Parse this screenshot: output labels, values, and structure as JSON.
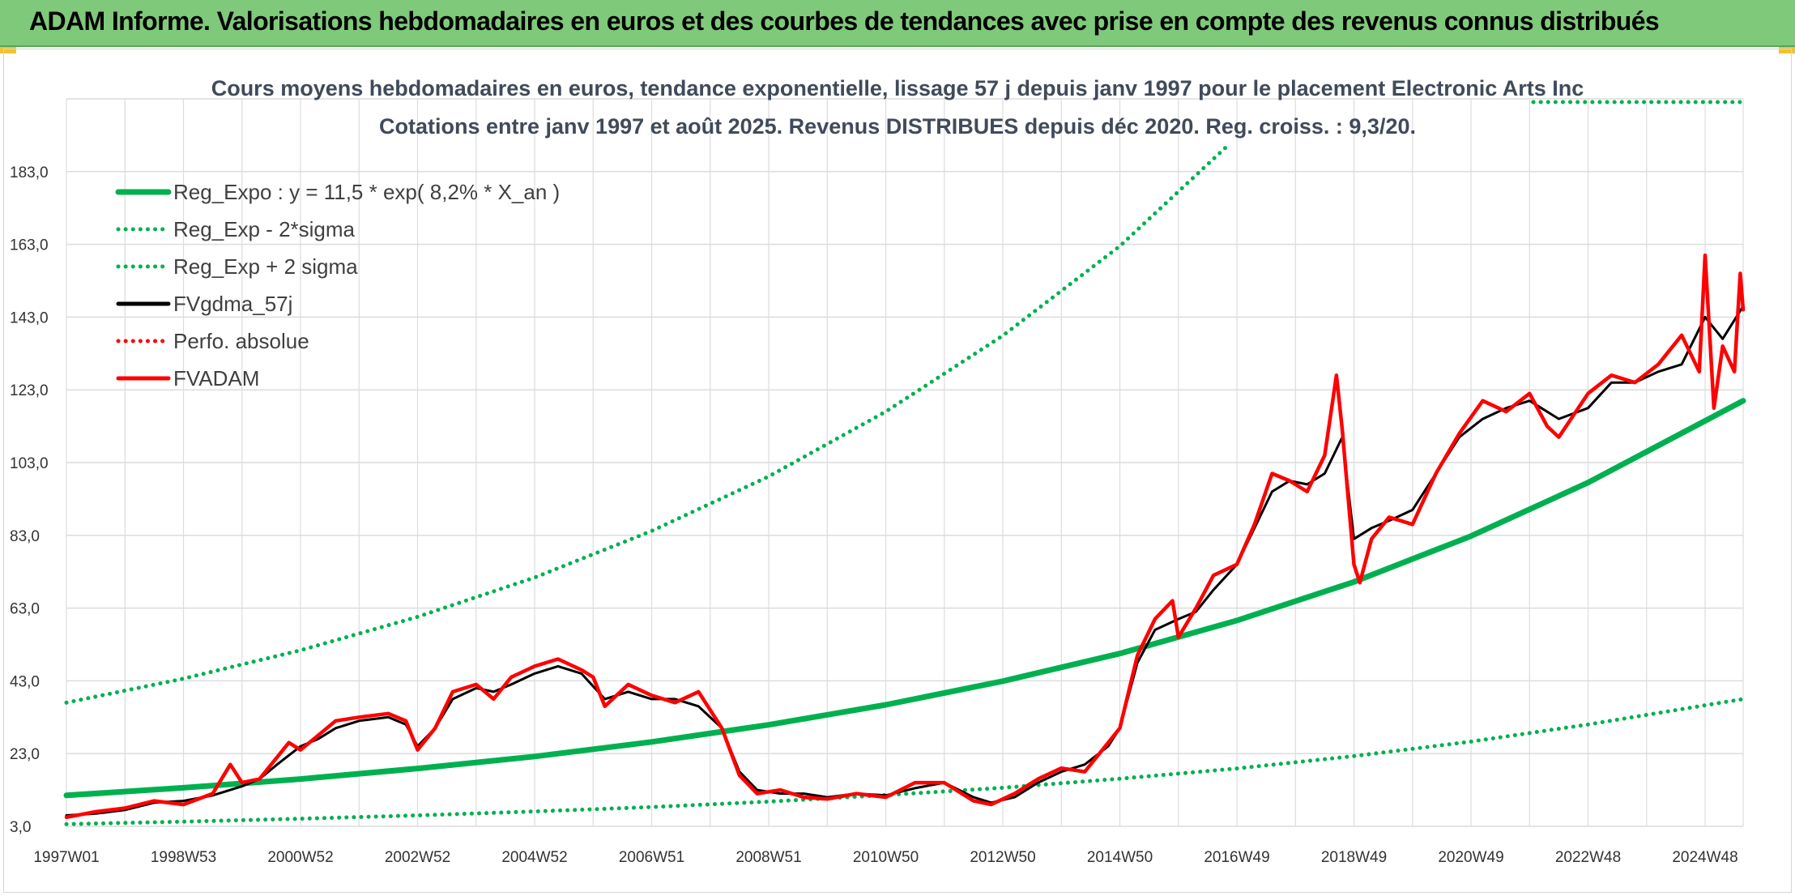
{
  "banner": {
    "title": "ADAM Informe. Valorisations hebdomadaires en euros et des courbes de tendances avec prise en compte des revenus connus distribués"
  },
  "colors": {
    "banner_bg": "#7fc97a",
    "green": "#00b050",
    "red": "#ff0000",
    "black": "#000000",
    "grid": "#dcdcdc"
  },
  "chart_data": {
    "type": "line",
    "title_line1": "Cours moyens hebdomadaires en euros, tendance exponentielle, lissage 57 j depuis janv 1997 pour le placement Electronic Arts Inc",
    "title_line2": "Cotations entre janv 1997 et août 2025. Revenus DISTRIBUES depuis déc 2020. Reg. croiss. : 9,3/20.",
    "xlabel": "",
    "ylabel": "",
    "x_range": [
      1997.0,
      2025.65
    ],
    "ylim": [
      3.0,
      203.0
    ],
    "y_ticks": [
      "3,0",
      "23,0",
      "43,0",
      "63,0",
      "83,0",
      "103,0",
      "123,0",
      "143,0",
      "163,0",
      "183,0"
    ],
    "x_ticks": [
      {
        "label": "1997W01",
        "x": 1997.0
      },
      {
        "label": "1998W53",
        "x": 1999.0
      },
      {
        "label": "2000W52",
        "x": 2001.0
      },
      {
        "label": "2002W52",
        "x": 2003.0
      },
      {
        "label": "2004W52",
        "x": 2005.0
      },
      {
        "label": "2006W51",
        "x": 2007.0
      },
      {
        "label": "2008W51",
        "x": 2009.0
      },
      {
        "label": "2010W50",
        "x": 2011.0
      },
      {
        "label": "2012W50",
        "x": 2013.0
      },
      {
        "label": "2014W50",
        "x": 2015.0
      },
      {
        "label": "2016W49",
        "x": 2017.0
      },
      {
        "label": "2018W49",
        "x": 2019.0
      },
      {
        "label": "2020W49",
        "x": 2021.0
      },
      {
        "label": "2022W48",
        "x": 2023.0
      },
      {
        "label": "2024W48",
        "x": 2025.0
      }
    ],
    "grid": true,
    "legend_position": "top-left",
    "series": [
      {
        "name": "Reg_Expo : y = 11,5 * exp( 8,2% *  X_an )",
        "style": "solid",
        "color": "#00b050",
        "x": [
          1997,
          1999,
          2001,
          2003,
          2005,
          2007,
          2009,
          2011,
          2013,
          2015,
          2017,
          2019,
          2021,
          2023,
          2025.65
        ],
        "y": [
          11.5,
          13.6,
          16.0,
          18.9,
          22.2,
          26.2,
          30.9,
          36.4,
          42.9,
          50.5,
          59.6,
          70.2,
          82.8,
          97.5,
          120.0
        ]
      },
      {
        "name": "Reg_Exp - 2*sigma",
        "style": "dotted",
        "color": "#00b050",
        "x": [
          1997,
          1999,
          2001,
          2003,
          2005,
          2007,
          2009,
          2011,
          2013,
          2015,
          2017,
          2019,
          2021,
          2023,
          2025.65
        ],
        "y": [
          3.6,
          4.3,
          5.1,
          6.0,
          7.1,
          8.3,
          9.8,
          11.6,
          13.6,
          16.1,
          18.9,
          22.3,
          26.3,
          31.0,
          38.0
        ]
      },
      {
        "name": "Reg_Exp + 2 sigma",
        "style": "dotted",
        "color": "#00b050",
        "x": [
          1997,
          1999,
          2001,
          2003,
          2005,
          2007,
          2009,
          2011,
          2013,
          2015,
          2016.8
        ],
        "y": [
          37.0,
          43.6,
          51.4,
          60.6,
          71.4,
          84.2,
          99.2,
          117.0,
          137.9,
          162.5,
          189.5
        ]
      },
      {
        "name": "FVgdma_57j",
        "style": "solid",
        "color": "#000000",
        "x": [
          1997.0,
          1997.5,
          1998.0,
          1998.5,
          1999.0,
          1999.5,
          2000.0,
          2000.3,
          2000.6,
          2001.0,
          2001.3,
          2001.6,
          2002.0,
          2002.5,
          2002.8,
          2003.0,
          2003.3,
          2003.6,
          2004.0,
          2004.3,
          2004.6,
          2005.0,
          2005.4,
          2005.8,
          2006.2,
          2006.6,
          2007.0,
          2007.4,
          2007.8,
          2008.2,
          2008.5,
          2008.8,
          2009.2,
          2009.6,
          2010.0,
          2010.5,
          2011.0,
          2011.5,
          2012.0,
          2012.5,
          2012.8,
          2013.2,
          2013.6,
          2014.0,
          2014.4,
          2014.8,
          2015.0,
          2015.3,
          2015.6,
          2016.0,
          2016.3,
          2016.6,
          2017.0,
          2017.3,
          2017.6,
          2017.9,
          2018.2,
          2018.5,
          2018.8,
          2019.0,
          2019.3,
          2019.6,
          2020.0,
          2020.4,
          2020.8,
          2021.2,
          2021.6,
          2022.0,
          2022.5,
          2023.0,
          2023.4,
          2023.8,
          2024.2,
          2024.6,
          2025.0,
          2025.3,
          2025.65
        ],
        "y": [
          6.0,
          6.5,
          7.5,
          9.5,
          10.0,
          11.5,
          14.0,
          16.0,
          20.0,
          25.0,
          27.0,
          30.0,
          32.0,
          33.0,
          31.0,
          25.0,
          30.0,
          38.0,
          41.0,
          40.0,
          42.0,
          45.0,
          47.0,
          45.0,
          38.0,
          40.0,
          38.0,
          38.0,
          36.0,
          30.0,
          18.0,
          13.0,
          12.0,
          12.0,
          11.0,
          12.0,
          11.5,
          13.5,
          15.0,
          11.0,
          9.5,
          11.0,
          15.0,
          18.0,
          20.0,
          25.0,
          30.0,
          48.0,
          57.0,
          60.0,
          62.0,
          68.0,
          75.0,
          85.0,
          95.0,
          98.0,
          97.0,
          100.0,
          110.0,
          82.0,
          85.0,
          87.0,
          90.0,
          100.0,
          110.0,
          115.0,
          118.0,
          120.0,
          115.0,
          118.0,
          125.0,
          125.0,
          128.0,
          130.0,
          143.0,
          137.0,
          146.0
        ]
      },
      {
        "name": "Perfo. absolue",
        "style": "dotted",
        "color": "#ff0000",
        "x": [],
        "y": []
      },
      {
        "name": "FVADAM",
        "style": "solid",
        "color": "#ff0000",
        "x": [
          1997.0,
          1997.5,
          1998.0,
          1998.5,
          1999.0,
          1999.5,
          1999.8,
          2000.0,
          2000.3,
          2000.6,
          2000.8,
          2001.0,
          2001.3,
          2001.6,
          2002.0,
          2002.5,
          2002.8,
          2003.0,
          2003.3,
          2003.6,
          2004.0,
          2004.3,
          2004.6,
          2005.0,
          2005.4,
          2005.8,
          2006.0,
          2006.2,
          2006.6,
          2007.0,
          2007.4,
          2007.8,
          2008.2,
          2008.5,
          2008.8,
          2009.2,
          2009.6,
          2010.0,
          2010.5,
          2011.0,
          2011.5,
          2012.0,
          2012.5,
          2012.8,
          2013.2,
          2013.6,
          2014.0,
          2014.4,
          2014.8,
          2015.0,
          2015.3,
          2015.6,
          2015.9,
          2016.0,
          2016.3,
          2016.6,
          2017.0,
          2017.3,
          2017.6,
          2017.9,
          2018.2,
          2018.5,
          2018.7,
          2018.8,
          2019.0,
          2019.1,
          2019.3,
          2019.6,
          2020.0,
          2020.4,
          2020.8,
          2021.2,
          2021.6,
          2022.0,
          2022.3,
          2022.5,
          2023.0,
          2023.4,
          2023.8,
          2024.2,
          2024.6,
          2024.9,
          2025.0,
          2025.15,
          2025.3,
          2025.5,
          2025.6,
          2025.65
        ],
        "y": [
          5.5,
          7.0,
          8.0,
          10.0,
          9.0,
          12.0,
          20.0,
          15.0,
          16.0,
          22.0,
          26.0,
          24.0,
          28.0,
          32.0,
          33.0,
          34.0,
          32.0,
          24.0,
          30.0,
          40.0,
          42.0,
          38.0,
          44.0,
          47.0,
          49.0,
          46.0,
          44.0,
          36.0,
          42.0,
          39.0,
          37.0,
          40.0,
          30.0,
          17.0,
          12.0,
          13.0,
          11.0,
          10.5,
          12.0,
          11.0,
          15.0,
          15.0,
          10.0,
          9.0,
          12.0,
          16.0,
          19.0,
          18.0,
          26.0,
          30.0,
          50.0,
          60.0,
          65.0,
          55.0,
          63.0,
          72.0,
          75.0,
          86.0,
          100.0,
          98.0,
          95.0,
          105.0,
          127.0,
          112.0,
          75.0,
          70.0,
          82.0,
          88.0,
          86.0,
          100.0,
          111.0,
          120.0,
          117.0,
          122.0,
          113.0,
          110.0,
          122.0,
          127.0,
          125.0,
          130.0,
          138.0,
          128.0,
          160.0,
          118.0,
          135.0,
          128.0,
          155.0,
          145.0
        ]
      }
    ]
  }
}
